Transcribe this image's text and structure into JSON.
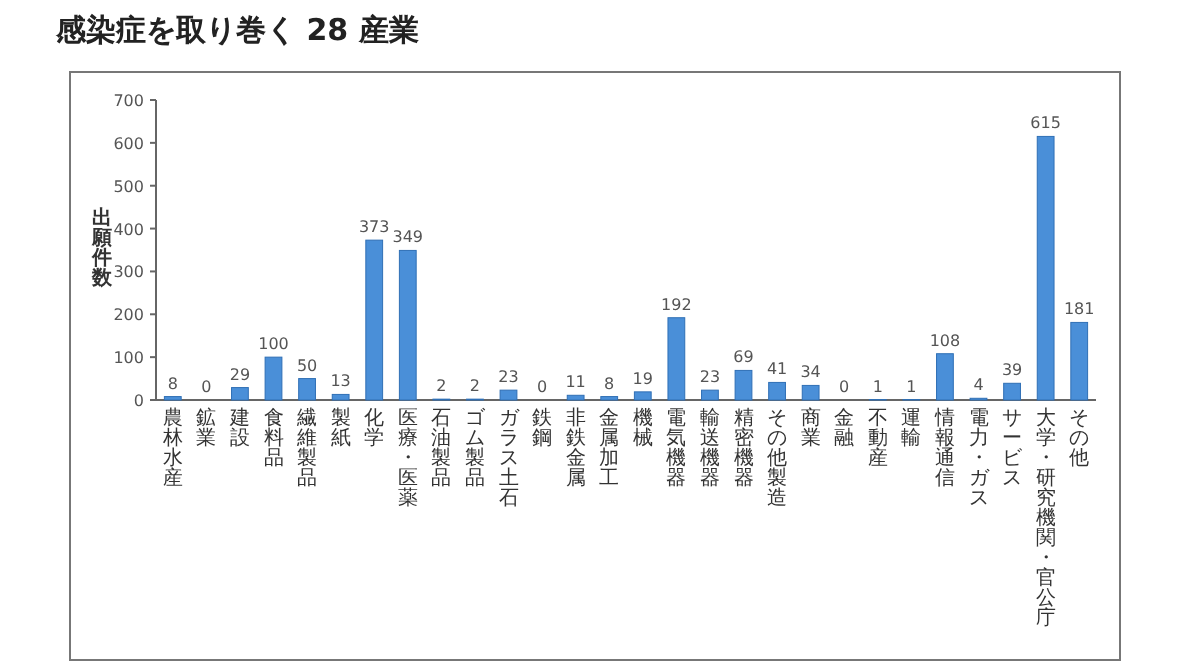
{
  "chart_data": {
    "type": "bar",
    "title": "感染症を取り巻く 28 産業",
    "ylabel": "出願件数",
    "categories": [
      "農林水産",
      "鉱業",
      "建設",
      "食料品",
      "繊維製品",
      "製紙",
      "化学",
      "医療・医薬",
      "石油製品",
      "ゴム製品",
      "ガラス土石",
      "鉄鋼",
      "非鉄金属",
      "金属加工",
      "機械",
      "電気機器",
      "輸送機器",
      "精密機器",
      "その他製造",
      "商業",
      "金融",
      "不動産",
      "運輸",
      "情報通信",
      "電力・ガス",
      "サービス",
      "大学・研究機関・官公庁",
      "その他"
    ],
    "values": [
      8,
      0,
      29,
      100,
      50,
      13,
      373,
      349,
      2,
      2,
      23,
      0,
      11,
      8,
      19,
      192,
      23,
      69,
      41,
      34,
      0,
      1,
      1,
      108,
      4,
      39,
      615,
      181
    ],
    "color": "#4a8fd8",
    "data_labels": true,
    "ylim": [
      0,
      700
    ],
    "yticks": [
      0,
      100,
      200,
      300,
      400,
      500,
      600,
      700
    ]
  }
}
